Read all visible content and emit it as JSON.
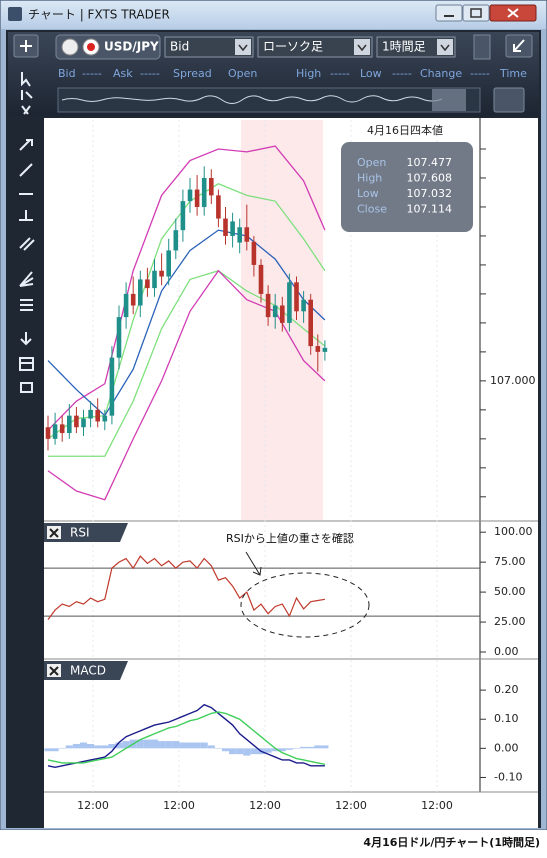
{
  "window": {
    "title": "チャート | FXTS TRADER"
  },
  "toolbar": {
    "symbol": "USD/JPY",
    "price_type": "Bid",
    "chart_type": "ローソク足",
    "timeframe": "1時間足"
  },
  "quote_header": [
    "Bid",
    "-----",
    "Ask",
    "-----",
    "Spread",
    "Open",
    "High",
    "-----",
    "Low",
    "-----",
    "Change",
    "-----",
    "Time"
  ],
  "price_chart": {
    "ylim": [
      106.52,
      107.9
    ],
    "yticks": [
      {
        "value": 107,
        "label": "107.000"
      }
    ],
    "minor_yticks": [
      106.6,
      106.7,
      106.8,
      106.9,
      107.1,
      107.2,
      107.3,
      107.4,
      107.5,
      107.6,
      107.7,
      107.8
    ],
    "up_color": "#1f8f8a",
    "down_color": "#b8332c",
    "candles": {
      "open": [
        106.84,
        106.8,
        106.85,
        106.82,
        106.88,
        106.84,
        106.87,
        106.9,
        106.86,
        106.88,
        107.08,
        107.22,
        107.3,
        107.26,
        107.35,
        107.32,
        107.38,
        107.36,
        107.45,
        107.52,
        107.62,
        107.66,
        107.6,
        107.7,
        107.64,
        107.56,
        107.5,
        107.477,
        107.53,
        107.48,
        107.4,
        107.3,
        107.22,
        107.26,
        107.2,
        107.34,
        107.24,
        107.28,
        107.12,
        107.1
      ],
      "high": [
        106.88,
        106.89,
        106.88,
        106.92,
        106.91,
        106.9,
        106.93,
        106.94,
        106.9,
        107.12,
        107.26,
        107.34,
        107.36,
        107.38,
        107.39,
        107.42,
        107.44,
        107.49,
        107.56,
        107.66,
        107.7,
        107.71,
        107.74,
        107.73,
        107.66,
        107.6,
        107.58,
        107.56,
        107.608,
        107.5,
        107.42,
        107.33,
        107.3,
        107.29,
        107.37,
        107.36,
        107.31,
        107.3,
        107.16,
        107.14
      ],
      "low": [
        106.76,
        106.78,
        106.79,
        106.8,
        106.82,
        106.81,
        106.84,
        106.84,
        106.83,
        106.85,
        107.04,
        107.18,
        107.23,
        107.22,
        107.29,
        107.29,
        107.33,
        107.33,
        107.42,
        107.48,
        107.58,
        107.57,
        107.57,
        107.61,
        107.53,
        107.47,
        107.46,
        107.44,
        107.45,
        107.36,
        107.27,
        107.19,
        107.18,
        107.17,
        107.17,
        107.21,
        107.2,
        107.09,
        107.032,
        107.07
      ],
      "close": [
        106.8,
        106.85,
        106.82,
        106.88,
        106.84,
        106.87,
        106.9,
        106.86,
        106.88,
        107.08,
        107.22,
        107.3,
        107.26,
        107.35,
        107.32,
        107.38,
        107.36,
        107.45,
        107.52,
        107.62,
        107.66,
        107.6,
        107.7,
        107.64,
        107.56,
        107.5,
        107.55,
        107.53,
        107.48,
        107.4,
        107.3,
        107.22,
        107.26,
        107.2,
        107.34,
        107.24,
        107.28,
        107.12,
        107.1,
        107.114
      ]
    },
    "bands": {
      "x": [
        0,
        4,
        8,
        12,
        16,
        20,
        24,
        28,
        32,
        36,
        39
      ],
      "series": [
        {
          "color": "#d23cb4",
          "values": [
            106.83,
            106.93,
            106.99,
            107.38,
            107.64,
            107.76,
            107.8,
            107.79,
            107.81,
            107.69,
            107.52
          ]
        },
        {
          "color": "#7ee07e",
          "values": [
            106.8,
            106.87,
            106.88,
            107.21,
            107.49,
            107.62,
            107.68,
            107.64,
            107.62,
            107.49,
            107.38
          ]
        },
        {
          "color": "#2a62b8",
          "values": [
            107.07,
            106.97,
            106.88,
            107.04,
            107.31,
            107.45,
            107.52,
            107.5,
            107.42,
            107.28,
            107.21
          ]
        },
        {
          "color": "#7ee07e",
          "values": [
            106.74,
            106.74,
            106.74,
            106.93,
            107.18,
            107.35,
            107.38,
            107.31,
            107.26,
            107.18,
            107.12
          ]
        },
        {
          "color": "#d23cb4",
          "values": [
            106.69,
            106.62,
            106.59,
            106.8,
            107.0,
            107.24,
            107.38,
            107.28,
            107.24,
            107.07,
            107.0
          ]
        }
      ]
    },
    "info": {
      "title": "4月16日四本値",
      "rows": [
        {
          "label": "Open",
          "value": 107.477
        },
        {
          "label": "High",
          "value": 107.608
        },
        {
          "label": "Low",
          "value": 107.032
        },
        {
          "label": "Close",
          "value": 107.114
        }
      ]
    }
  },
  "rsi": {
    "name": "RSI",
    "color": "#c0392b",
    "ylim": [
      -5,
      106
    ],
    "yticks": [
      {
        "value": 100,
        "label": "100.00"
      },
      {
        "value": 75,
        "label": "75.00"
      },
      {
        "value": 50,
        "label": "50.00"
      },
      {
        "value": 25,
        "label": "25.00"
      },
      {
        "value": 0,
        "label": "0.00"
      }
    ],
    "levels": [
      70,
      30
    ],
    "values": [
      27,
      35,
      40,
      38,
      42,
      40,
      45,
      42,
      44,
      70,
      75,
      78,
      70,
      80,
      74,
      78,
      72,
      76,
      70,
      75,
      76,
      70,
      78,
      72,
      60,
      62,
      55,
      45,
      50,
      35,
      40,
      32,
      38,
      40,
      30,
      45,
      36,
      42,
      43,
      44
    ],
    "annotation": "RSIから上値の重さを確認"
  },
  "macd": {
    "name": "MACD",
    "ylim": [
      -0.15,
      0.3
    ],
    "yticks": [
      {
        "value": 0.2,
        "label": "0.20"
      },
      {
        "value": 0.1,
        "label": "0.10"
      },
      {
        "value": 0,
        "label": "0.00"
      },
      {
        "value": -0.1,
        "label": "-0.10"
      }
    ],
    "hist_color": "#a9c5f0",
    "hist": [
      -0.01,
      -0.01,
      0.0,
      0.01,
      0.015,
      0.02,
      0.015,
      0.01,
      0.01,
      0.015,
      0.02,
      0.025,
      0.03,
      0.03,
      0.03,
      0.03,
      0.025,
      0.025,
      0.025,
      0.02,
      0.02,
      0.02,
      0.02,
      0.01,
      0.0,
      -0.01,
      -0.02,
      -0.02,
      -0.025,
      -0.02,
      -0.02,
      -0.015,
      -0.01,
      -0.01,
      -0.005,
      0.0,
      0.005,
      0.005,
      0.01,
      0.01
    ],
    "series": [
      {
        "color": "#1c1c8c",
        "values": [
          -0.06,
          -0.065,
          -0.06,
          -0.055,
          -0.05,
          -0.045,
          -0.04,
          -0.035,
          -0.03,
          -0.01,
          0.02,
          0.04,
          0.05,
          0.06,
          0.07,
          0.08,
          0.085,
          0.09,
          0.1,
          0.11,
          0.12,
          0.13,
          0.15,
          0.14,
          0.12,
          0.1,
          0.08,
          0.05,
          0.03,
          0.01,
          -0.01,
          -0.02,
          -0.03,
          -0.04,
          -0.04,
          -0.05,
          -0.05,
          -0.06,
          -0.06,
          -0.06
        ]
      },
      {
        "color": "#3fcf5a",
        "values": [
          -0.04,
          -0.045,
          -0.05,
          -0.05,
          -0.05,
          -0.05,
          -0.045,
          -0.04,
          -0.035,
          -0.03,
          -0.015,
          0.0,
          0.015,
          0.03,
          0.04,
          0.05,
          0.06,
          0.07,
          0.075,
          0.085,
          0.095,
          0.1,
          0.11,
          0.12,
          0.125,
          0.12,
          0.11,
          0.1,
          0.08,
          0.06,
          0.04,
          0.02,
          0.0,
          -0.015,
          -0.025,
          -0.035,
          -0.04,
          -0.045,
          -0.05,
          -0.055
        ]
      }
    ]
  },
  "time_axis": {
    "labels": [
      "12:00",
      "12:00",
      "12:00",
      "12:00",
      "12:00"
    ]
  },
  "caption": "4月16日ドル/円チャート(1時間足)"
}
